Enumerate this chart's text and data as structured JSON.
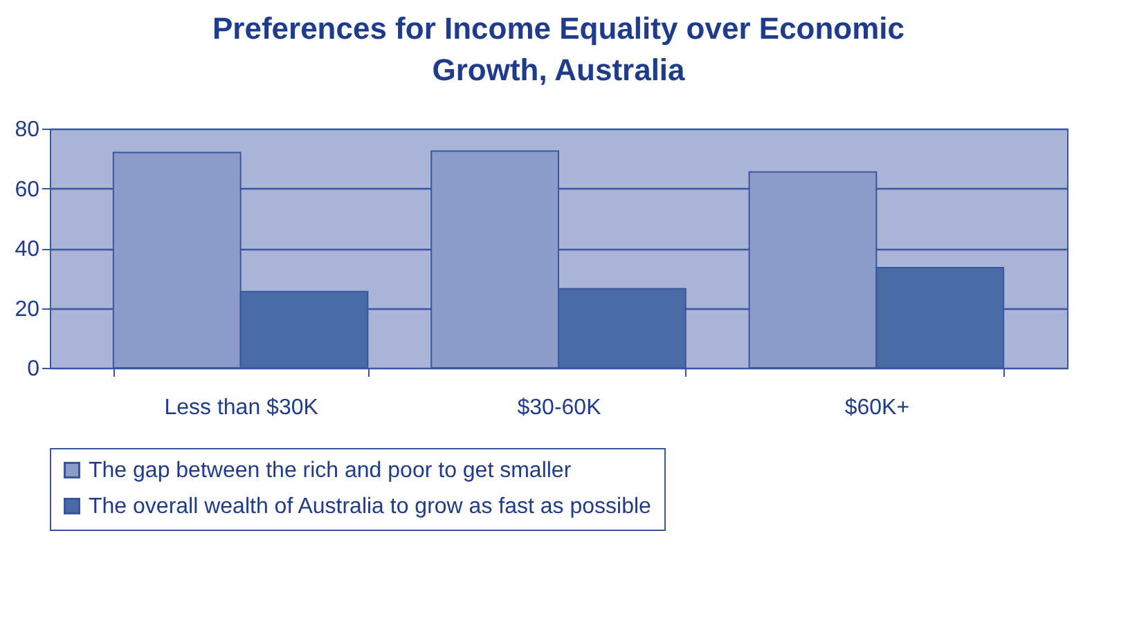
{
  "chart_data": {
    "type": "bar",
    "title": "Preferences for Income Equality over Economic Growth, Australia",
    "categories": [
      "Less than $30K",
      "$30-60K",
      "$60K+"
    ],
    "series": [
      {
        "name": "The gap between the rich and poor to get smaller",
        "color": "#8c9cc8",
        "values": [
          72,
          72.5,
          65.5
        ]
      },
      {
        "name": "The overall wealth of Australia to grow as fast as possible",
        "color": "#4a6aa6",
        "values": [
          25.5,
          26.5,
          33.5
        ]
      }
    ],
    "ylim": [
      0,
      80
    ],
    "yticks": [
      0,
      20,
      40,
      60,
      80
    ],
    "grid": "y",
    "legend": "bottom"
  }
}
